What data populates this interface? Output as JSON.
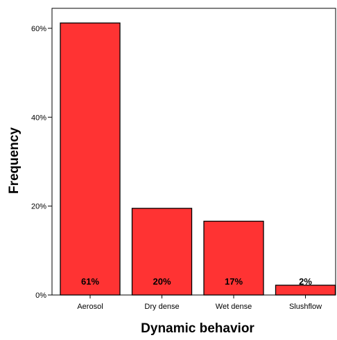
{
  "chart_data": {
    "type": "bar",
    "title": "",
    "xlabel": "Dynamic behavior",
    "ylabel": "Frequency",
    "categories": [
      "Aerosol",
      "Dry dense",
      "Wet dense",
      "Slushflow"
    ],
    "values": [
      61.2,
      19.5,
      16.6,
      2.2
    ],
    "data_labels": [
      "61%",
      "20%",
      "17%",
      "2%"
    ],
    "y_ticks": [
      0,
      20,
      40,
      60
    ],
    "y_tick_labels": [
      "0%",
      "20%",
      "40%",
      "60%"
    ],
    "ylim": [
      0,
      64.5
    ],
    "unit": "%",
    "grid": false,
    "legend": "none",
    "bar_color": "#ff3333",
    "bar_edge_color": "#000000"
  }
}
